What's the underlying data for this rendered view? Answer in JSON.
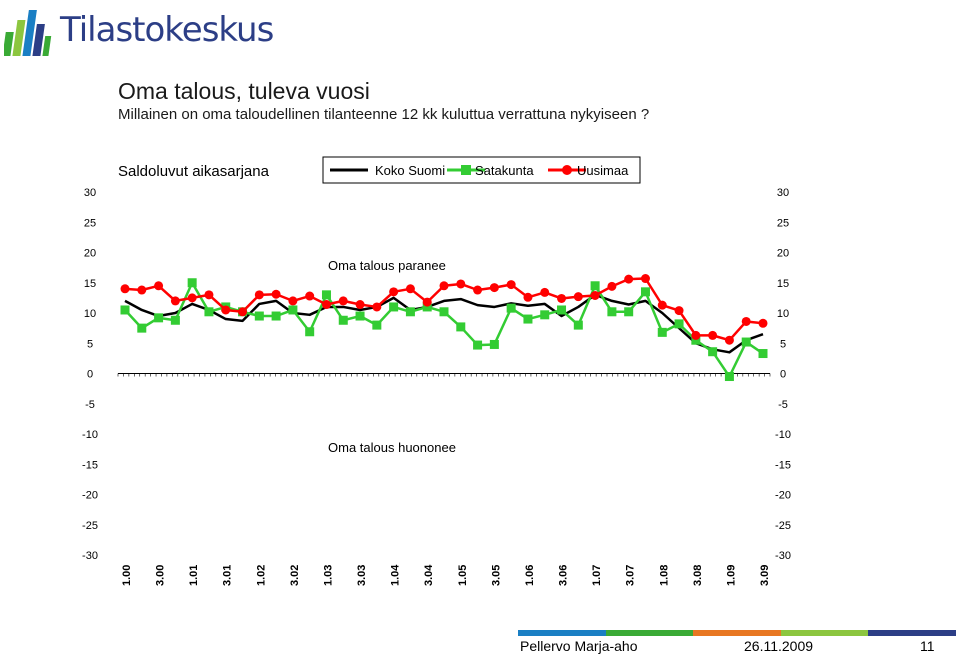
{
  "brand": {
    "logo_text": "Tilastokeskus",
    "logo_color": "#2c3e86",
    "bar_colors": [
      "#3aaa35",
      "#8cc63f",
      "#1a7fc4",
      "#2c3e86"
    ]
  },
  "header": {
    "title": "Oma talous, tuleva vuosi",
    "subtitle": "Millainen on oma taloudellinen tilanteenne 12 kk kuluttua verrattuna nykyiseen ?"
  },
  "chart_data": {
    "type": "line",
    "title": "Saldoluvut aikasarjana",
    "ylim": [
      -30,
      30
    ],
    "yticks": [
      -30,
      -25,
      -20,
      -15,
      -10,
      -5,
      0,
      5,
      10,
      15,
      20,
      25,
      30
    ],
    "grid": false,
    "legend_position": "top",
    "annotations": [
      "Oma talous paranee",
      "Oma talous huononee"
    ],
    "x_tick_labels": [
      "1.00",
      "3.00",
      "1.01",
      "3.01",
      "1.02",
      "3.02",
      "1.03",
      "3.03",
      "1.04",
      "3.04",
      "1.05",
      "3.05",
      "1.06",
      "3.06",
      "1.07",
      "3.07",
      "1.08",
      "3.08",
      "1.09",
      "3.09"
    ],
    "series": [
      {
        "name": "Koko Suomi",
        "color": "#000000",
        "marker": "none",
        "values": [
          12.0,
          10.5,
          9.5,
          10.0,
          11.5,
          10.5,
          9.0,
          8.7,
          11.5,
          12.0,
          10.0,
          9.7,
          11.0,
          11.0,
          10.5,
          11.0,
          12.5,
          10.5,
          11.0,
          12.0,
          12.3,
          11.3,
          11.0,
          11.6,
          11.2,
          11.5,
          9.5,
          11.0,
          13.0,
          12.0,
          11.4,
          12.0,
          10.0,
          7.5,
          5.0,
          4.0,
          3.5,
          5.5,
          6.5
        ]
      },
      {
        "name": "Satakunta",
        "color": "#33cc33",
        "marker": "square",
        "values": [
          10.5,
          7.5,
          9.2,
          8.8,
          15.0,
          10.2,
          11.0,
          10.2,
          9.5,
          9.5,
          10.5,
          6.9,
          13.0,
          8.8,
          9.5,
          8.0,
          11.0,
          10.2,
          11.0,
          10.2,
          7.7,
          4.7,
          4.8,
          10.8,
          9.0,
          9.7,
          10.5,
          8.0,
          14.5,
          10.2,
          10.2,
          13.5,
          6.8,
          8.2,
          5.5,
          3.6,
          -0.5,
          5.2,
          3.3
        ]
      },
      {
        "name": "Uusimaa",
        "color": "#ff0000",
        "marker": "circle",
        "values": [
          14.0,
          13.8,
          14.5,
          12.0,
          12.5,
          13.0,
          10.5,
          10.2,
          13.0,
          13.1,
          12.0,
          12.8,
          11.4,
          12.0,
          11.4,
          11.0,
          13.5,
          14.0,
          11.8,
          14.5,
          14.8,
          13.8,
          14.2,
          14.7,
          12.6,
          13.4,
          12.4,
          12.7,
          12.9,
          14.4,
          15.6,
          15.7,
          11.3,
          10.4,
          6.3,
          6.3,
          5.5,
          8.6,
          8.3
        ]
      }
    ]
  },
  "footer": {
    "author": "Pellervo Marja-aho",
    "date": "26.11.2009",
    "page": "11",
    "bar_colors": [
      "#1a7fc4",
      "#3aaa35",
      "#e87722",
      "#8cc63f",
      "#2c3e86"
    ]
  }
}
